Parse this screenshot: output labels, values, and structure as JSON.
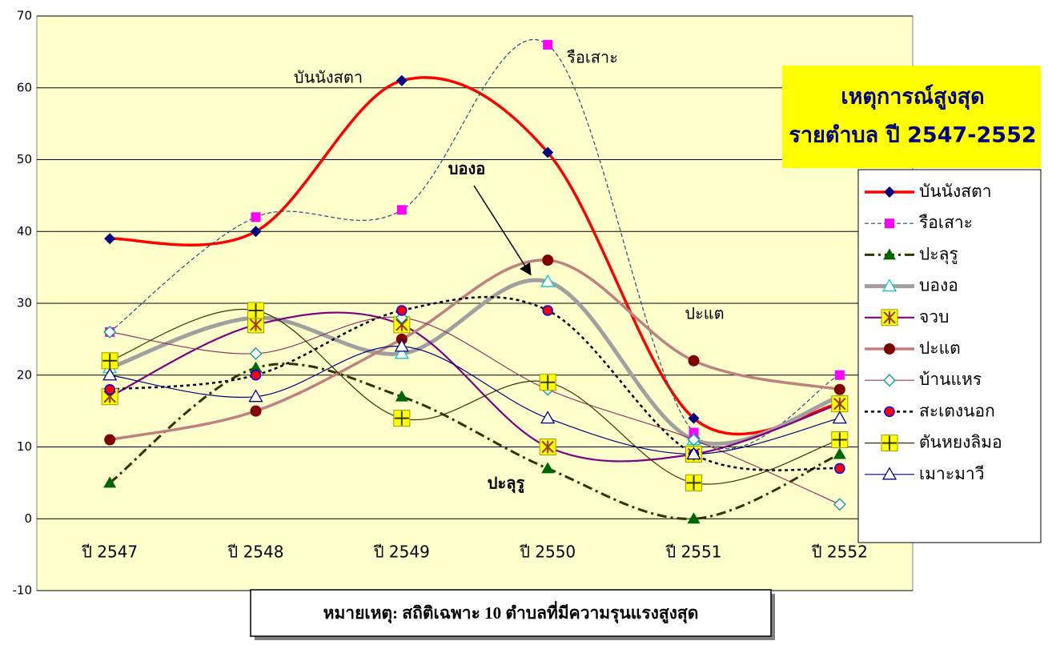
{
  "chart_data": {
    "type": "line",
    "categories": [
      "ปี 2547",
      "ปี 2548",
      "ปี 2549",
      "ปี 2550",
      "ปี 2551",
      "ปี 2552"
    ],
    "ylim": [
      -10,
      70
    ],
    "yticks": [
      -10,
      0,
      10,
      20,
      30,
      40,
      50,
      60,
      70
    ],
    "grid": true,
    "smooth": true,
    "title_lines": [
      "เหตุการณ์สูงสุด",
      "รายตำบล ปี 2547-2552"
    ],
    "note": "หมายเหตุ: สถิติเฉพาะ 10 ตำบลที่มีความรุนแรงสูงสุด",
    "annotations": [
      "บันนังสตา",
      "รือเสาะ",
      "บองอ",
      "ปะแต",
      "ปะลุรู"
    ],
    "legend": "right",
    "series": [
      {
        "name": "บันนังสตา",
        "color": "#ff0000",
        "width": 3.5,
        "dash": "",
        "marker": "diamond",
        "marker_color": "#000080",
        "values": [
          39,
          40,
          61,
          51,
          14,
          16
        ]
      },
      {
        "name": "รือเสาะ",
        "color": "#1f4e79",
        "width": 1.2,
        "dash": "5 3",
        "marker": "square",
        "marker_color": "#ff00ff",
        "values": [
          26,
          42,
          43,
          66,
          12,
          20
        ]
      },
      {
        "name": "ปะลุรู",
        "color": "#333300",
        "width": 3,
        "dash": "12 5 3 5",
        "marker": "triangle",
        "marker_color": "#006600",
        "values": [
          5,
          21,
          17,
          7,
          0,
          9
        ]
      },
      {
        "name": "บองอ",
        "color": "#a0a0a0",
        "width": 5,
        "dash": "",
        "marker": "triangle-open",
        "marker_color": "#00cccc",
        "values": [
          21,
          28,
          23,
          33,
          11,
          17
        ]
      },
      {
        "name": "จวบ",
        "color": "#800080",
        "width": 2.2,
        "dash": "",
        "marker": "star",
        "marker_color": "#993300",
        "values": [
          17,
          27,
          27,
          10,
          9,
          16
        ]
      },
      {
        "name": "ปะแต",
        "color": "#c08080",
        "width": 3.5,
        "dash": "",
        "marker": "circle",
        "marker_color": "#800000",
        "values": [
          11,
          15,
          25,
          36,
          22,
          18
        ]
      },
      {
        "name": "บ้านแหร",
        "color": "#993366",
        "width": 1.2,
        "dash": "",
        "marker": "diamond-open",
        "marker_color": "#009999",
        "values": [
          26,
          23,
          28,
          18,
          11,
          2
        ]
      },
      {
        "name": "สะเตงนอก",
        "color": "#000000",
        "width": 2.5,
        "dash": "4 4",
        "marker": "circle-blue",
        "marker_color": "#ff0000",
        "values": [
          18,
          20,
          29,
          29,
          9,
          7
        ]
      },
      {
        "name": "ตันหยงลิมอ",
        "color": "#333300",
        "width": 1.2,
        "dash": "",
        "marker": "plus",
        "marker_color": "#333300",
        "values": [
          22,
          29,
          14,
          19,
          5,
          11
        ]
      },
      {
        "name": "เมาะมาวี",
        "color": "#000080",
        "width": 1.2,
        "dash": "",
        "marker": "triangle-open",
        "marker_color": "#000080",
        "values": [
          20,
          17,
          24,
          14,
          9,
          14
        ]
      }
    ]
  }
}
